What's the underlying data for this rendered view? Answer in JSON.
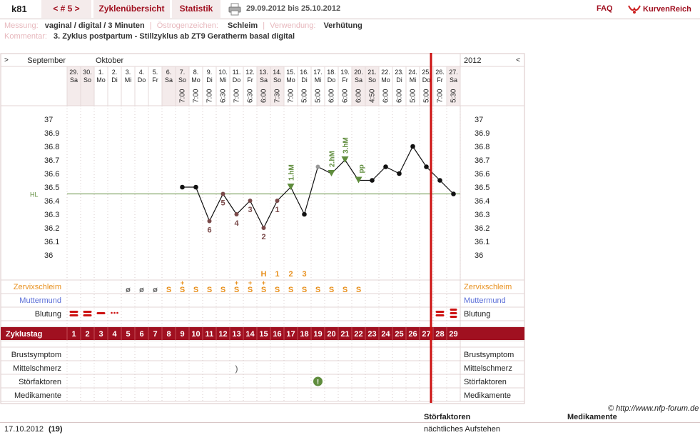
{
  "toolbar": {
    "cycle_id": "k81",
    "nav_label": "< # 5 >",
    "overview_label": "Zyklenübersicht",
    "stats_label": "Statistik",
    "date_range": "29.09.2012 bis 25.10.2012",
    "faq_label": "FAQ",
    "brand_label": "KurvenReich",
    "print_icon": "printer-icon"
  },
  "meta": {
    "messung_label": "Messung:",
    "messung_value": "vaginal / digital / 3 Minuten",
    "oestrogen_label": "Östrogenzeichen:",
    "oestrogen_value": "Schleim",
    "verwendung_label": "Verwendung:",
    "verwendung_value": "Verhütung",
    "kommentar_label": "Kommentar:",
    "kommentar_value": "3. Zyklus postpartum - Stillzyklus ab ZT9 Geratherm basal digital"
  },
  "chart_data": {
    "type": "line",
    "title": "",
    "year": "2012",
    "prev_arrow": ">",
    "next_arrow": "<",
    "months": [
      "September",
      "Oktober"
    ],
    "dates": [
      "29.",
      "30.",
      "1.",
      "2.",
      "3.",
      "4.",
      "5.",
      "6.",
      "7.",
      "8.",
      "9.",
      "10.",
      "11.",
      "12.",
      "13.",
      "14.",
      "15.",
      "16.",
      "17.",
      "18.",
      "19.",
      "20.",
      "21.",
      "22.",
      "23.",
      "24.",
      "25.",
      "26.",
      "27."
    ],
    "weekdays": [
      "Sa",
      "So",
      "Mo",
      "Di",
      "Mi",
      "Do",
      "Fr",
      "Sa",
      "So",
      "Mo",
      "Di",
      "Mi",
      "Do",
      "Fr",
      "Sa",
      "So",
      "Mo",
      "Di",
      "Mi",
      "Do",
      "Fr",
      "Sa",
      "So",
      "Mo",
      "Di",
      "Mi",
      "Do",
      "Fr",
      "Sa"
    ],
    "weekend_columns": [
      1,
      2,
      8,
      9,
      15,
      16,
      22,
      23,
      29
    ],
    "times": [
      "",
      "",
      "",
      "",
      "",
      "",
      "",
      "",
      "7:00",
      "7:00",
      "7:00",
      "6:30",
      "7:00",
      "6:30",
      "6:00",
      "7:30",
      "7:00",
      "5:00",
      "5:00",
      "6:00",
      "6:00",
      "6:00",
      "4:50",
      "6:00",
      "6:00",
      "5:00",
      "5:00",
      "7:00",
      "5:30"
    ],
    "cycle_days": [
      1,
      2,
      3,
      4,
      5,
      6,
      7,
      8,
      9,
      10,
      11,
      12,
      13,
      14,
      15,
      16,
      17,
      18,
      19,
      20,
      21,
      22,
      23,
      24,
      25,
      26,
      27,
      28,
      29
    ],
    "temperatures": [
      null,
      null,
      null,
      null,
      null,
      null,
      null,
      null,
      36.5,
      36.5,
      36.25,
      36.45,
      36.3,
      36.4,
      36.2,
      36.4,
      36.5,
      36.3,
      36.65,
      36.6,
      36.7,
      36.55,
      36.55,
      36.65,
      36.6,
      36.8,
      36.65,
      36.55,
      36.45
    ],
    "point_kinds": [
      "",
      "",
      "",
      "",
      "",
      "",
      "",
      "",
      "normal",
      "normal",
      "counted",
      "counted",
      "counted",
      "counted",
      "counted",
      "counted",
      "high",
      "normal",
      "excluded",
      "high",
      "high",
      "high",
      "normal",
      "normal",
      "normal",
      "normal",
      "normal",
      "normal",
      "normal"
    ],
    "point_labels": [
      "",
      "",
      "",
      "",
      "",
      "",
      "",
      "",
      "",
      "",
      "6",
      "5",
      "4",
      "3",
      "2",
      "1",
      "1.hM",
      "",
      "",
      "2.hM",
      "3.hM",
      "pp",
      "",
      "",
      "",
      "",
      "",
      "",
      ""
    ],
    "y_ticks": [
      "37",
      "36.9",
      "36.8",
      "36.7",
      "36.6",
      "36.5",
      "36.4",
      "36.3",
      "36.2",
      "36.1",
      "36"
    ],
    "ylim": [
      36.0,
      37.0
    ],
    "hl_label": "HL",
    "hl_value": 36.45,
    "marker_line_after_column": 27,
    "peak_row": [
      "",
      "",
      "",
      "",
      "",
      "",
      "",
      "",
      "",
      "",
      "",
      "",
      "",
      "",
      "H",
      "1",
      "2",
      "3",
      "",
      "",
      "",
      "",
      "",
      "",
      "",
      "",
      "",
      "",
      ""
    ],
    "mucus": [
      "",
      "",
      "",
      "",
      "ø",
      "ø",
      "ø",
      "S",
      "S",
      "S",
      "S",
      "S",
      "S",
      "S",
      "S",
      "S",
      "S",
      "S",
      "S",
      "S",
      "S",
      "S",
      "",
      "",
      "",
      "",
      "",
      "",
      ""
    ],
    "mucus_plus": [
      8,
      12,
      13,
      14
    ],
    "bleeding": [
      "heavy",
      "heavy",
      "medium",
      "spotting",
      "",
      "",
      "",
      "",
      "",
      "",
      "",
      "",
      "",
      "",
      "",
      "",
      "",
      "",
      "",
      "",
      "",
      "",
      "",
      "",
      "",
      "",
      "",
      "heavy",
      "very-heavy"
    ],
    "mittelschmerz": [
      "",
      "",
      "",
      "",
      "",
      "",
      "",
      "",
      "",
      "",
      "",
      "",
      ")",
      "",
      "",
      "",
      "",
      "",
      "",
      "",
      "",
      "",
      "",
      "",
      "",
      "",
      "",
      "",
      ""
    ],
    "stoerfaktoren": [
      "",
      "",
      "",
      "",
      "",
      "",
      "",
      "",
      "",
      "",
      "",
      "",
      "",
      "",
      "",
      "",
      "",
      "",
      "!",
      "",
      "",
      "",
      "",
      "",
      "",
      "",
      "",
      "",
      ""
    ],
    "row_labels": {
      "zervix": "Zervixschleim",
      "muttermund": "Muttermund",
      "blutung": "Blutung",
      "zyklustag": "Zyklustag",
      "brust": "Brustsymptom",
      "mittelschmerz": "Mittelschmerz",
      "stoer": "Störfaktoren",
      "medi": "Medikamente"
    },
    "colors": {
      "brand": "#a01020",
      "accent_orange": "#e8901e",
      "green": "#5f8c3c",
      "counted": "#7a4a4a",
      "line": "#111111",
      "marker": "#cc1111",
      "muttermund": "#5b6ed8",
      "weekend_bg": "#f4ebeb"
    }
  },
  "footer": {
    "copyright": "© http://www.nfp-forum.de",
    "stoer_header": "Störfaktoren",
    "medi_header": "Medikamente",
    "date": "17.10.2012",
    "date_count": "(19)",
    "stoer_text": "nächtliches Aufstehen"
  }
}
